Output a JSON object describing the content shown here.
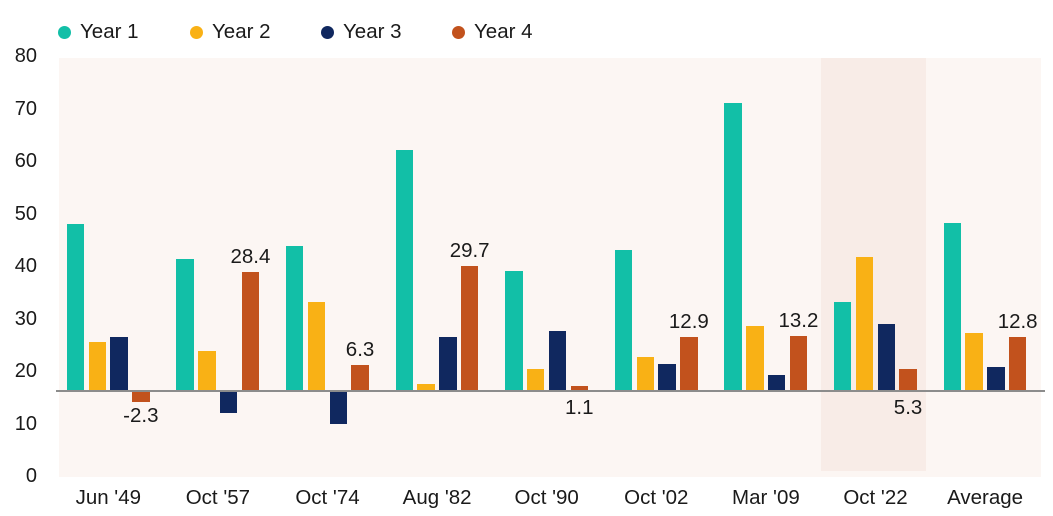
{
  "chart_data": {
    "type": "bar",
    "title": "",
    "xlabel": "",
    "ylabel": "",
    "categories": [
      "Jun '49",
      "Oct '57",
      "Oct '74",
      "Aug '82",
      "Oct '90",
      "Oct '02",
      "Mar '09",
      "Oct '22",
      "Average"
    ],
    "series": [
      {
        "name": "Year 1",
        "color": "#12bfa7",
        "values": [
          39.8,
          31.4,
          34.5,
          57.5,
          28.6,
          33.6,
          68.6,
          21.3,
          39.9
        ]
      },
      {
        "name": "Year 2",
        "color": "#f9b115",
        "values": [
          11.7,
          9.5,
          21.1,
          1.6,
          5.2,
          8.2,
          15.5,
          31.8,
          13.9
        ]
      },
      {
        "name": "Year 3",
        "color": "#10285f",
        "values": [
          12.8,
          -5.0,
          -7.5,
          12.9,
          14.3,
          6.4,
          3.7,
          16.0,
          5.8
        ]
      },
      {
        "name": "Year 4",
        "color": "#c2521d",
        "values": [
          -2.3,
          28.4,
          6.3,
          29.7,
          1.1,
          12.9,
          13.2,
          5.3,
          12.8
        ],
        "data_labels": [
          "-2.3",
          "28.4",
          "6.3",
          "29.7",
          "1.1",
          "12.9",
          "13.2",
          "5.3",
          "12.8"
        ],
        "data_label_placement": [
          "below",
          "above",
          "above",
          "above",
          "below",
          "above",
          "above",
          "below",
          "above"
        ]
      }
    ],
    "y_ticks": [
      0,
      10,
      20,
      30,
      40,
      50,
      60,
      70,
      80
    ],
    "ylim": [
      0,
      80
    ],
    "grid": false,
    "legend_position": "top-left",
    "highlight_category": "Oct '22",
    "highlight_color": "#f8ece7",
    "plot_background": "#fcf6f3",
    "axis_line_color": "#8c8c8c",
    "text_color": "#1a1a1a"
  }
}
